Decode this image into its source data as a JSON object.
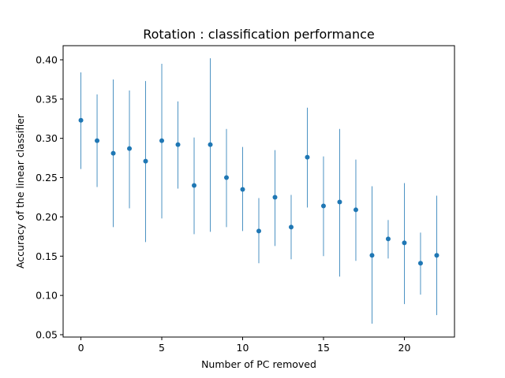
{
  "chart_data": {
    "type": "scatter",
    "title": "Rotation : classification performance",
    "xlabel": "Number of PC removed",
    "ylabel": "Accuracy of the linear classifier",
    "xlim": [
      -1.1,
      23.1
    ],
    "ylim": [
      0.047,
      0.418
    ],
    "xticks": [
      0,
      5,
      10,
      15,
      20
    ],
    "yticks": [
      0.05,
      0.1,
      0.15,
      0.2,
      0.25,
      0.3,
      0.35,
      0.4
    ],
    "ytick_labels": [
      "0.05",
      "0.10",
      "0.15",
      "0.20",
      "0.25",
      "0.30",
      "0.35",
      "0.40"
    ],
    "grid": false,
    "legend": "none",
    "color": "#1f77b4",
    "series": [
      {
        "x": [
          0,
          1,
          2,
          3,
          4,
          5,
          6,
          7,
          8,
          9,
          10,
          11,
          12,
          13,
          14,
          15,
          16,
          17,
          18,
          19,
          20,
          21,
          22
        ],
        "y": [
          0.323,
          0.297,
          0.281,
          0.287,
          0.271,
          0.297,
          0.292,
          0.24,
          0.292,
          0.25,
          0.235,
          0.182,
          0.225,
          0.187,
          0.276,
          0.214,
          0.219,
          0.209,
          0.151,
          0.172,
          0.167,
          0.141,
          0.151
        ],
        "ymin": [
          0.261,
          0.238,
          0.187,
          0.211,
          0.168,
          0.198,
          0.236,
          0.178,
          0.181,
          0.187,
          0.182,
          0.141,
          0.163,
          0.146,
          0.212,
          0.15,
          0.124,
          0.144,
          0.064,
          0.147,
          0.089,
          0.101,
          0.075
        ],
        "ymax": [
          0.384,
          0.356,
          0.375,
          0.361,
          0.373,
          0.395,
          0.347,
          0.301,
          0.402,
          0.312,
          0.289,
          0.224,
          0.285,
          0.228,
          0.339,
          0.277,
          0.312,
          0.273,
          0.239,
          0.196,
          0.243,
          0.18,
          0.227
        ]
      }
    ]
  }
}
